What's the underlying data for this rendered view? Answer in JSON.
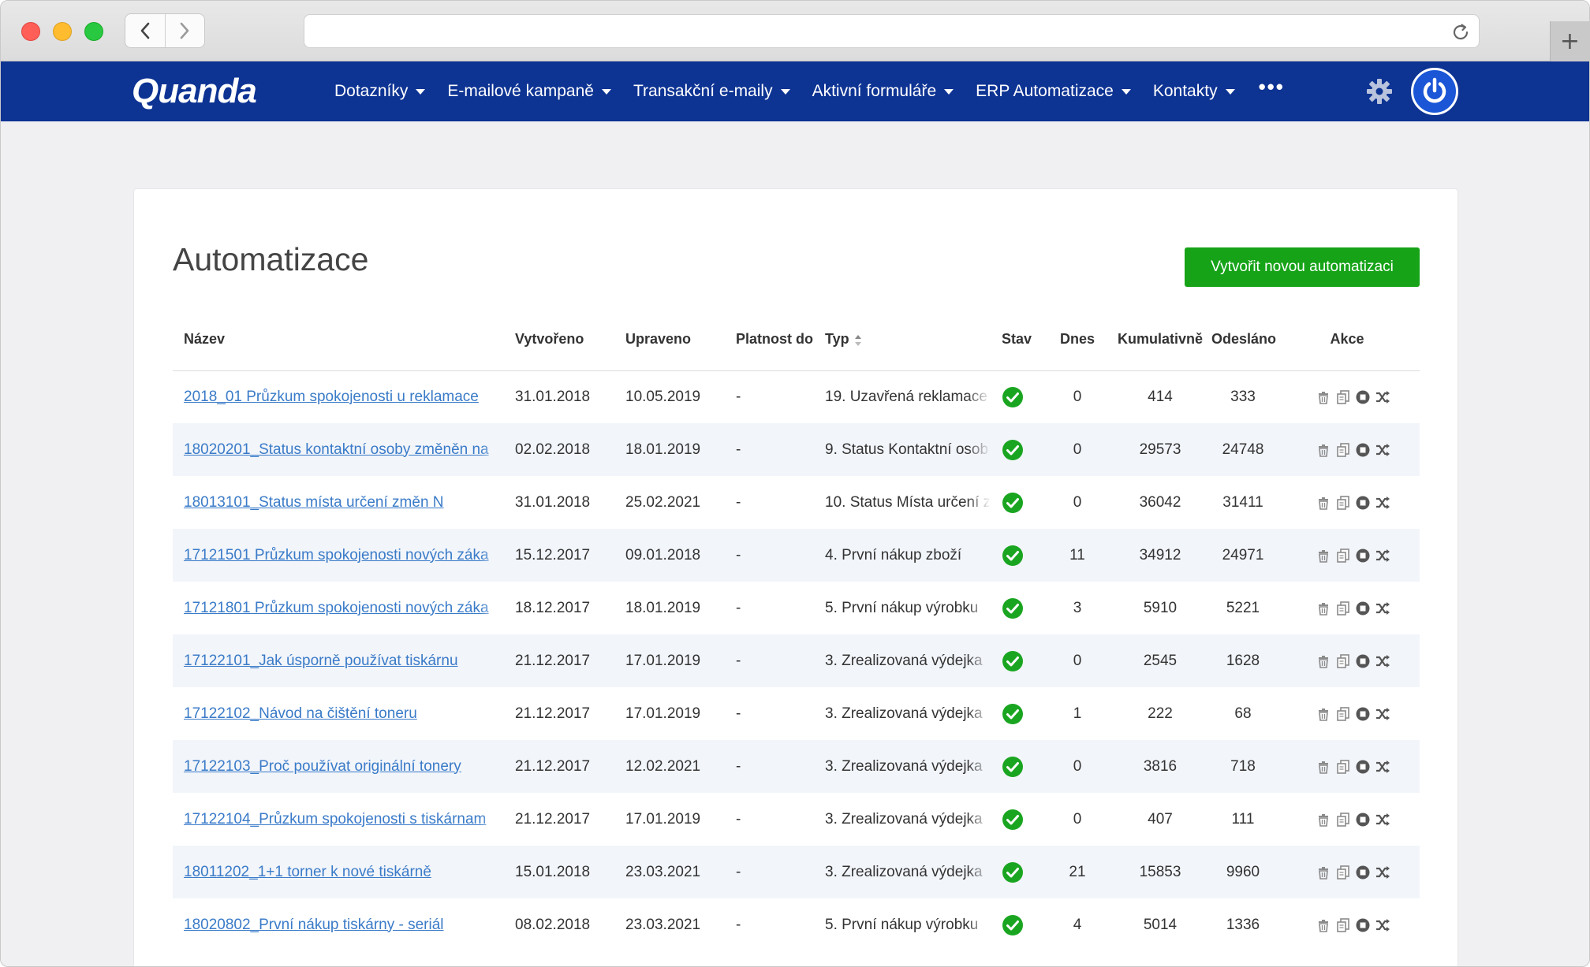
{
  "app": {
    "logo_text": "Quanda",
    "menu": [
      {
        "label": "Dotazníky"
      },
      {
        "label": "E-mailové kampaně"
      },
      {
        "label": "Transakční e-maily"
      },
      {
        "label": "Aktivní formuláře"
      },
      {
        "label": "ERP Automatizace"
      },
      {
        "label": "Kontakty"
      }
    ],
    "more_label": "•••",
    "header_color": "#0d3393"
  },
  "page": {
    "title": "Automatizace",
    "create_button": "Vytvořit novou automatizaci",
    "accent_green": "#16a318"
  },
  "table": {
    "columns": {
      "name": "Název",
      "created": "Vytvořeno",
      "updated": "Upraveno",
      "valid_until": "Platnost do",
      "type": "Typ",
      "status": "Stav",
      "today": "Dnes",
      "cumulative": "Kumulativně",
      "sent": "Odesláno",
      "actions": "Akce"
    },
    "rows": [
      {
        "name": "2018_01 Průzkum spokojenosti u reklamace",
        "created": "31.01.2018",
        "updated": "10.05.2019",
        "valid": "-",
        "type": "19. Uzavřená reklamace",
        "today": "0",
        "cumulative": "414",
        "sent": "333"
      },
      {
        "name": "18020201_Status kontaktní osoby změněn na",
        "created": "02.02.2018",
        "updated": "18.01.2019",
        "valid": "-",
        "type": "9. Status Kontaktní osob",
        "today": "0",
        "cumulative": "29573",
        "sent": "24748"
      },
      {
        "name": "18013101_Status místa určení změn N",
        "created": "31.01.2018",
        "updated": "25.02.2021",
        "valid": "-",
        "type": "10. Status Místa určení z",
        "today": "0",
        "cumulative": "36042",
        "sent": "31411"
      },
      {
        "name": "17121501 Průzkum spokojenosti nových záka",
        "created": "15.12.2017",
        "updated": "09.01.2018",
        "valid": "-",
        "type": "4. První nákup zboží",
        "today": "11",
        "cumulative": "34912",
        "sent": "24971"
      },
      {
        "name": "17121801 Průzkum spokojenosti nových záka",
        "created": "18.12.2017",
        "updated": "18.01.2019",
        "valid": "-",
        "type": "5. První nákup výrobku",
        "today": "3",
        "cumulative": "5910",
        "sent": "5221"
      },
      {
        "name": "17122101_Jak úsporně používat tiskárnu",
        "created": "21.12.2017",
        "updated": "17.01.2019",
        "valid": "-",
        "type": "3. Zrealizovaná výdejka",
        "today": "0",
        "cumulative": "2545",
        "sent": "1628"
      },
      {
        "name": "17122102_Návod na čištění toneru",
        "created": "21.12.2017",
        "updated": "17.01.2019",
        "valid": "-",
        "type": "3. Zrealizovaná výdejka",
        "today": "1",
        "cumulative": "222",
        "sent": "68"
      },
      {
        "name": "17122103_Proč používat originální tonery",
        "created": "21.12.2017",
        "updated": "12.02.2021",
        "valid": "-",
        "type": "3. Zrealizovaná výdejka",
        "today": "0",
        "cumulative": "3816",
        "sent": "718"
      },
      {
        "name": "17122104_Průzkum spokojenosti s tiskárnam",
        "created": "21.12.2017",
        "updated": "17.01.2019",
        "valid": "-",
        "type": "3. Zrealizovaná výdejka",
        "today": "0",
        "cumulative": "407",
        "sent": "111"
      },
      {
        "name": "18011202_1+1 torner k nové tiskárně",
        "created": "15.01.2018",
        "updated": "23.03.2021",
        "valid": "-",
        "type": "3. Zrealizovaná výdejka",
        "today": "21",
        "cumulative": "15853",
        "sent": "9960"
      },
      {
        "name": "18020802_První nákup tiskárny - seriál",
        "created": "08.02.2018",
        "updated": "23.03.2021",
        "valid": "-",
        "type": "5. První nákup výrobku",
        "today": "4",
        "cumulative": "5014",
        "sent": "1336"
      }
    ],
    "status_color": "#1aa521",
    "icons": [
      "trash-icon",
      "copy-icon",
      "stop-icon",
      "shuffle-icon"
    ]
  }
}
